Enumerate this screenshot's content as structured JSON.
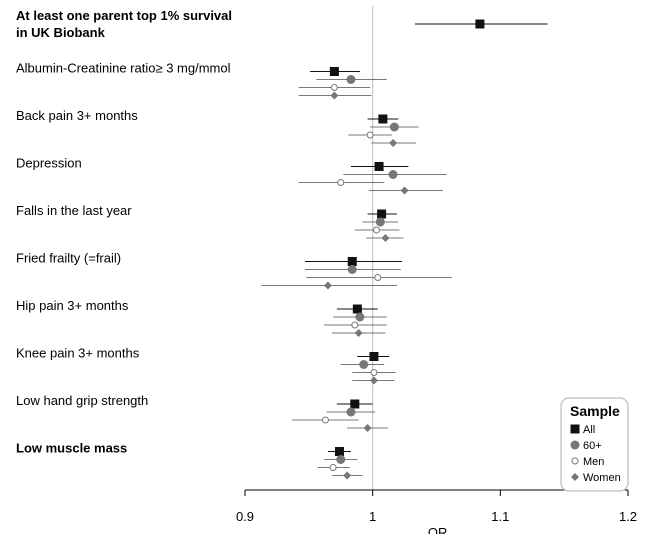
{
  "chart_data": {
    "type": "forest",
    "xlabel": "OR",
    "xlim": [
      0.9,
      1.2
    ],
    "reference_line": 1.0,
    "ticks": [
      0.9,
      1.0,
      1.1,
      1.2
    ],
    "tick_labels": [
      "0.9",
      "1",
      "1.1",
      "1.2"
    ],
    "legend": {
      "title": "Sample",
      "placement": "bottom-right",
      "entries": [
        {
          "name": "All",
          "marker": "square",
          "color": "#111111"
        },
        {
          "name": "60+",
          "marker": "circle",
          "color": "#777777"
        },
        {
          "name": "Men",
          "marker": "open-circle",
          "color": "#777777"
        },
        {
          "name": "Women",
          "marker": "diamond",
          "color": "#777777"
        }
      ]
    },
    "categories": [
      {
        "label": "At least one parent top 1% survival",
        "label2": "in UK Biobank",
        "bold": true,
        "points": [
          {
            "sample": "All",
            "or": 1.084,
            "lo": 1.033,
            "hi": 1.137
          }
        ]
      },
      {
        "label": "Albumin-Creatinine ratio≥ 3 mg/mmol",
        "bold": false,
        "points": [
          {
            "sample": "All",
            "or": 0.97,
            "lo": 0.951,
            "hi": 0.99
          },
          {
            "sample": "60+",
            "or": 0.983,
            "lo": 0.956,
            "hi": 1.011
          },
          {
            "sample": "Men",
            "or": 0.97,
            "lo": 0.942,
            "hi": 0.998
          },
          {
            "sample": "Women",
            "or": 0.97,
            "lo": 0.942,
            "hi": 0.999
          }
        ]
      },
      {
        "label": "Back pain 3+ months",
        "bold": false,
        "points": [
          {
            "sample": "All",
            "or": 1.008,
            "lo": 0.996,
            "hi": 1.02
          },
          {
            "sample": "60+",
            "or": 1.017,
            "lo": 0.998,
            "hi": 1.036
          },
          {
            "sample": "Men",
            "or": 0.998,
            "lo": 0.981,
            "hi": 1.015
          },
          {
            "sample": "Women",
            "or": 1.016,
            "lo": 0.999,
            "hi": 1.034
          }
        ]
      },
      {
        "label": "Depression",
        "bold": false,
        "points": [
          {
            "sample": "All",
            "or": 1.005,
            "lo": 0.983,
            "hi": 1.028
          },
          {
            "sample": "60+",
            "or": 1.016,
            "lo": 0.977,
            "hi": 1.058
          },
          {
            "sample": "Men",
            "or": 0.975,
            "lo": 0.942,
            "hi": 1.009
          },
          {
            "sample": "Women",
            "or": 1.025,
            "lo": 0.997,
            "hi": 1.055
          }
        ]
      },
      {
        "label": "Falls in the last year",
        "bold": false,
        "points": [
          {
            "sample": "All",
            "or": 1.007,
            "lo": 0.996,
            "hi": 1.019
          },
          {
            "sample": "60+",
            "or": 1.006,
            "lo": 0.992,
            "hi": 1.02
          },
          {
            "sample": "Men",
            "or": 1.003,
            "lo": 0.986,
            "hi": 1.021
          },
          {
            "sample": "Women",
            "or": 1.01,
            "lo": 0.995,
            "hi": 1.024
          }
        ]
      },
      {
        "label": "Fried frailty (=frail)",
        "bold": false,
        "points": [
          {
            "sample": "All",
            "or": 0.984,
            "lo": 0.947,
            "hi": 1.023
          },
          {
            "sample": "60+",
            "or": 0.984,
            "lo": 0.947,
            "hi": 1.022
          },
          {
            "sample": "Men",
            "or": 1.004,
            "lo": 0.948,
            "hi": 1.062
          },
          {
            "sample": "Women",
            "or": 0.965,
            "lo": 0.913,
            "hi": 1.019
          }
        ]
      },
      {
        "label": "Hip pain 3+ months",
        "bold": false,
        "points": [
          {
            "sample": "All",
            "or": 0.988,
            "lo": 0.972,
            "hi": 1.004
          },
          {
            "sample": "60+",
            "or": 0.99,
            "lo": 0.969,
            "hi": 1.011
          },
          {
            "sample": "Men",
            "or": 0.986,
            "lo": 0.962,
            "hi": 1.011
          },
          {
            "sample": "Women",
            "or": 0.989,
            "lo": 0.968,
            "hi": 1.01
          }
        ]
      },
      {
        "label": "Knee pain 3+ months",
        "bold": false,
        "points": [
          {
            "sample": "All",
            "or": 1.001,
            "lo": 0.988,
            "hi": 1.013
          },
          {
            "sample": "60+",
            "or": 0.993,
            "lo": 0.975,
            "hi": 1.009
          },
          {
            "sample": "Men",
            "or": 1.001,
            "lo": 0.984,
            "hi": 1.018
          },
          {
            "sample": "Women",
            "or": 1.001,
            "lo": 0.984,
            "hi": 1.017
          }
        ]
      },
      {
        "label": "Low hand grip strength",
        "bold": false,
        "points": [
          {
            "sample": "All",
            "or": 0.986,
            "lo": 0.972,
            "hi": 1.0
          },
          {
            "sample": "60+",
            "or": 0.983,
            "lo": 0.964,
            "hi": 1.002
          },
          {
            "sample": "Men",
            "or": 0.963,
            "lo": 0.937,
            "hi": 0.989
          },
          {
            "sample": "Women",
            "or": 0.996,
            "lo": 0.98,
            "hi": 1.012
          }
        ]
      },
      {
        "label": "Low muscle mass",
        "bold": true,
        "points": [
          {
            "sample": "All",
            "or": 0.974,
            "lo": 0.965,
            "hi": 0.983
          },
          {
            "sample": "60+",
            "or": 0.975,
            "lo": 0.962,
            "hi": 0.988
          },
          {
            "sample": "Men",
            "or": 0.969,
            "lo": 0.957,
            "hi": 0.982
          },
          {
            "sample": "Women",
            "or": 0.98,
            "lo": 0.968,
            "hi": 0.992
          }
        ]
      }
    ]
  }
}
